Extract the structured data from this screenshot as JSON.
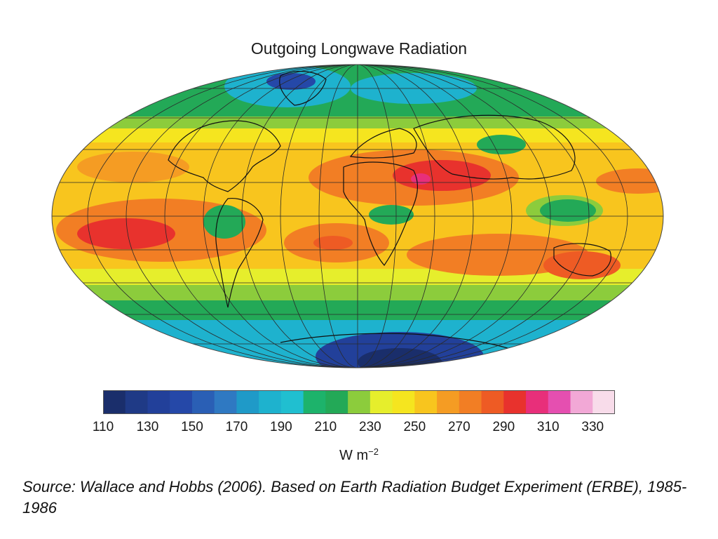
{
  "title": "Outgoing Longwave Radiation",
  "legend": {
    "tick_labels": [
      "110",
      "130",
      "150",
      "170",
      "190",
      "210",
      "230",
      "250",
      "270",
      "290",
      "310",
      "330"
    ],
    "units_base": "W m",
    "units_exponent": "−2",
    "bins": [
      {
        "from": 110,
        "to": 120,
        "color": "#1a2e6b"
      },
      {
        "from": 120,
        "to": 130,
        "color": "#1f3a86"
      },
      {
        "from": 130,
        "to": 140,
        "color": "#22409a"
      },
      {
        "from": 140,
        "to": 150,
        "color": "#2548a8"
      },
      {
        "from": 150,
        "to": 160,
        "color": "#2a5fb5"
      },
      {
        "from": 160,
        "to": 170,
        "color": "#2f79c2"
      },
      {
        "from": 170,
        "to": 180,
        "color": "#1f9ac8"
      },
      {
        "from": 180,
        "to": 190,
        "color": "#1eb2ce"
      },
      {
        "from": 190,
        "to": 200,
        "color": "#20bfd0"
      },
      {
        "from": 200,
        "to": 210,
        "color": "#1db36b"
      },
      {
        "from": 210,
        "to": 220,
        "color": "#23a957"
      },
      {
        "from": 220,
        "to": 230,
        "color": "#8ccc3c"
      },
      {
        "from": 230,
        "to": 240,
        "color": "#e6ee2c"
      },
      {
        "from": 240,
        "to": 250,
        "color": "#f5e51f"
      },
      {
        "from": 250,
        "to": 260,
        "color": "#f8c51e"
      },
      {
        "from": 260,
        "to": 270,
        "color": "#f59c23"
      },
      {
        "from": 270,
        "to": 280,
        "color": "#f27e24"
      },
      {
        "from": 280,
        "to": 290,
        "color": "#ee5b24"
      },
      {
        "from": 290,
        "to": 300,
        "color": "#e8322d"
      },
      {
        "from": 300,
        "to": 310,
        "color": "#e82f7a"
      },
      {
        "from": 310,
        "to": 320,
        "color": "#e54fb0"
      },
      {
        "from": 320,
        "to": 330,
        "color": "#f2a8d6"
      },
      {
        "from": 330,
        "to": 340,
        "color": "#f8dcea"
      }
    ]
  },
  "source_text": "Source:  Wallace and Hobbs (2006).  Based on Earth Radiation Budget Experiment (ERBE), 1985-1986"
}
